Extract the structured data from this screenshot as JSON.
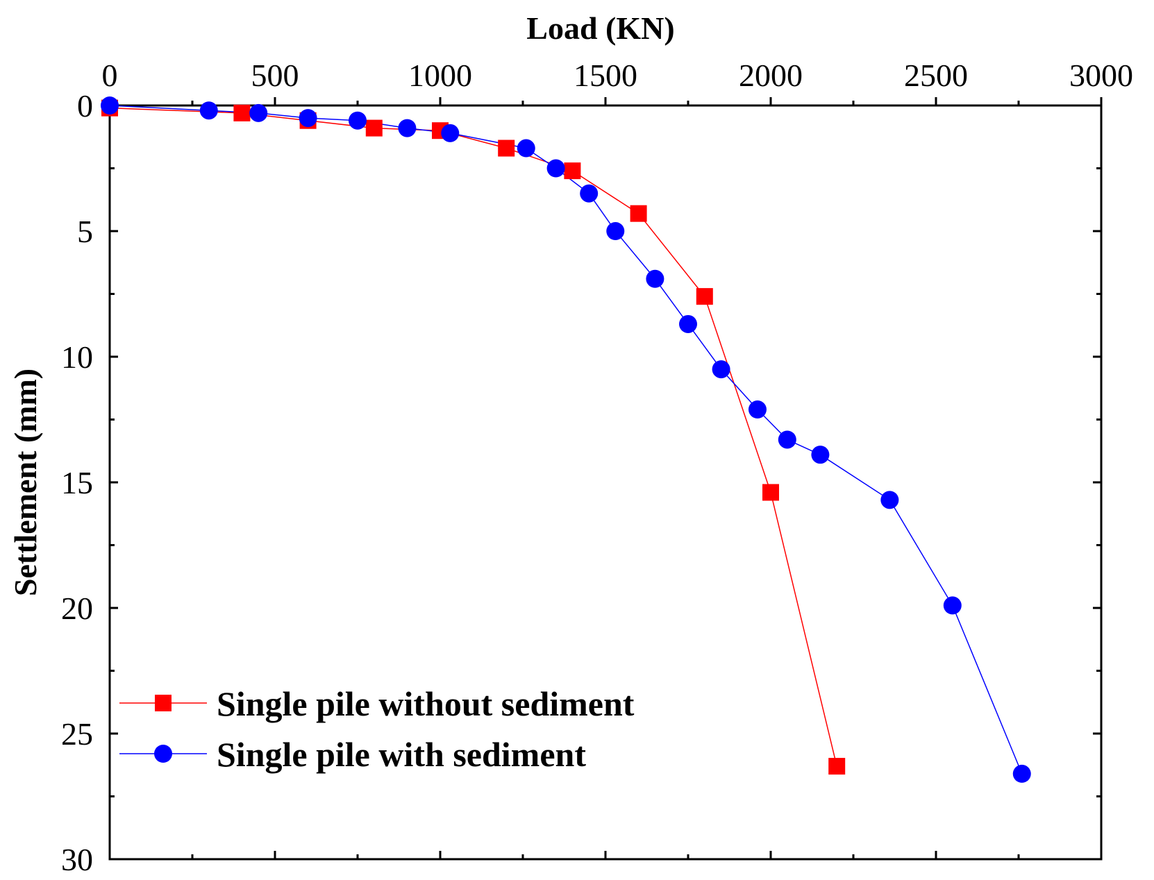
{
  "chart_data": {
    "type": "line",
    "title": "",
    "xlabel": "Load (KN)",
    "ylabel": "Settlement (mm)",
    "xlim": [
      0,
      3000
    ],
    "ylim": [
      0,
      30
    ],
    "y_inverted": true,
    "x_axis_position": "top",
    "xticks": [
      "0",
      "500",
      "1000",
      "1500",
      "2000",
      "2500",
      "3000"
    ],
    "yticks": [
      "0",
      "5",
      "10",
      "15",
      "20",
      "25",
      "30"
    ],
    "grid": false,
    "legend_position": "bottom-left",
    "series": [
      {
        "name": "Single pile without sediment",
        "color": "#ff0000",
        "marker": "square",
        "x": [
          0,
          400,
          600,
          800,
          1000,
          1200,
          1400,
          1600,
          1800,
          2000,
          2200
        ],
        "y": [
          0.1,
          0.3,
          0.6,
          0.9,
          1.0,
          1.7,
          2.6,
          4.3,
          7.6,
          15.4,
          26.3
        ]
      },
      {
        "name": "Single pile with sediment",
        "color": "#0000ff",
        "marker": "circle",
        "x": [
          0,
          300,
          450,
          600,
          750,
          900,
          1030,
          1260,
          1350,
          1450,
          1530,
          1650,
          1750,
          1850,
          1960,
          2050,
          2150,
          2360,
          2550,
          2760
        ],
        "y": [
          0.0,
          0.2,
          0.3,
          0.5,
          0.6,
          0.9,
          1.1,
          1.7,
          2.5,
          3.5,
          5.0,
          6.9,
          8.7,
          10.5,
          12.1,
          13.3,
          13.9,
          15.7,
          19.9,
          26.6
        ]
      }
    ]
  }
}
